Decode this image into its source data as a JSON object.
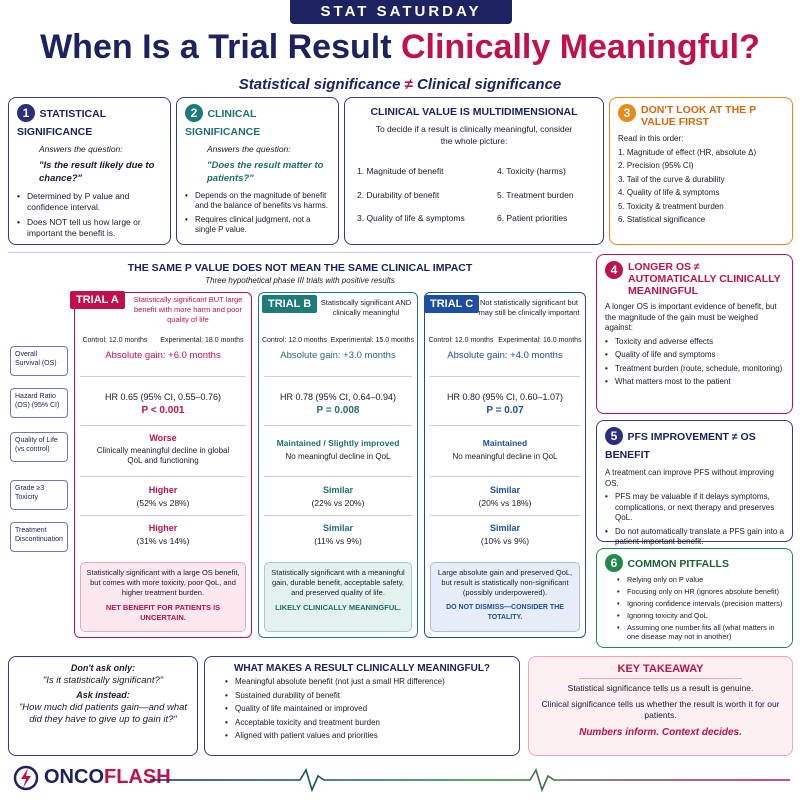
{
  "badge": "STAT SATURDAY",
  "title_a": "When Is a Trial Result ",
  "title_b": "Clinically Meaningful?",
  "sub_a": "Statistical significance ",
  "sub_neq": "≠",
  "sub_b": " Clinical significance",
  "box1": {
    "num": "1",
    "title": "STATISTICAL SIGNIFICANCE",
    "asks": "Answers the question:",
    "q": "\"Is the result likely due to chance?\"",
    "b1": "Determined by P value and confidence interval.",
    "b2": "Does NOT tell us how large or important the benefit is."
  },
  "box2": {
    "num": "2",
    "title": "CLINICAL SIGNIFICANCE",
    "asks": "Answers the question:",
    "q": "\"Does the result matter to patients?\"",
    "b1": "Depends on the magnitude of benefit and the balance of benefits vs harms.",
    "b2": "Requires clinical judgment, not a single P value."
  },
  "multi": {
    "title": "CLINICAL VALUE IS MULTIDIMENSIONAL",
    "intro": "To decide if a result is clinically meaningful, consider the whole picture:",
    "i1": "1.  Magnitude of benefit",
    "i2": "2.  Durability of benefit",
    "i3": "3.  Quality of life & symptoms",
    "i4": "4.  Toxicity (harms)",
    "i5": "5.  Treatment burden",
    "i6": "6.  Patient priorities"
  },
  "box3": {
    "num": "3",
    "title": "DON'T LOOK AT THE P VALUE FIRST",
    "intro": "Read in this order:",
    "i1": "1.  Magnitude of effect (HR, absolute Δ)",
    "i2": "2.  Precision (95% CI)",
    "i3": "3.  Tail of the curve & durability",
    "i4": "4.  Quality of life & symptoms",
    "i5": "5.  Toxicity & treatment burden",
    "i6": "6.  Statistical significance"
  },
  "trials": {
    "heading": "THE SAME P VALUE DOES NOT MEAN THE SAME CLINICAL IMPACT",
    "sub": "Three hypothetical phase III trials with positive results"
  },
  "rows": {
    "os": "Overall Survival (OS)",
    "hr": "Hazard Ratio (OS) (95% CI)",
    "qol": "Quality of Life (vs control)",
    "tox": "Grade ≥3 Toxicity",
    "disc": "Treatment Discontinuation"
  },
  "trialA": {
    "tag": "TRIAL A",
    "desc": "Statistically significant BUT large benefit with more harm and poor quality of life",
    "ctrl": "Control: 12.0 months",
    "exp": "Experimental: 18.0 months",
    "gain": "Absolute gain: +6.0 months",
    "hr": "HR 0.65 (95% CI, 0.55–0.76)",
    "p": "P < 0.001",
    "qol1": "Worse",
    "qol2": "Clinically meaningful decline in global QoL and functioning",
    "tox1": "Higher",
    "tox2": "(52% vs 28%)",
    "disc1": "Higher",
    "disc2": "(31% vs 14%)",
    "sum": "Statistically significant with a large OS benefit, but comes with more toxicity, poor QoL, and higher treatment burden.",
    "verdict": "NET BENEFIT FOR PATIENTS IS UNCERTAIN."
  },
  "trialB": {
    "tag": "TRIAL B",
    "desc": "Statistically significant AND clinically meaningful",
    "ctrl": "Control: 12.0 months",
    "exp": "Experimental: 15.0 months",
    "gain": "Absolute gain: +3.0 months",
    "hr": "HR 0.78 (95% CI, 0.64–0.94)",
    "p": "P = 0.008",
    "qol1": "Maintained / Slightly improved",
    "qol2": "No meaningful decline in QoL",
    "tox1": "Similar",
    "tox2": "(22% vs 20%)",
    "disc1": "Similar",
    "disc2": "(11% vs 9%)",
    "sum": "Statistically significant with a meaningful gain, durable benefit, acceptable safety, and preserved quality of life.",
    "verdict": "LIKELY CLINICALLY MEANINGFUL."
  },
  "trialC": {
    "tag": "TRIAL C",
    "desc": "Not statistically significant but may still be clinically important",
    "ctrl": "Control: 12.0 months",
    "exp": "Experimental: 16.0 months",
    "gain": "Absolute gain: +4.0 months",
    "hr": "HR 0.80 (95% CI, 0.60–1.07)",
    "p": "P = 0.07",
    "qol1": "Maintained",
    "qol2": "No meaningful decline in QoL",
    "tox1": "Similar",
    "tox2": "(20% vs 18%)",
    "disc1": "Similar",
    "disc2": "(10% vs 9%)",
    "sum": "Large absolute gain and preserved QoL, but result is statistically non-significant (possibly underpowered).",
    "verdict": "DO NOT DISMISS—CONSIDER THE TOTALITY."
  },
  "box4": {
    "num": "4",
    "title": "LONGER OS ≠ AUTOMATICALLY CLINICALLY MEANINGFUL",
    "intro": "A longer OS is important evidence of benefit, but the magnitude of the gain must be weighed against:",
    "b1": "Toxicity and adverse effects",
    "b2": "Quality of life and symptoms",
    "b3": "Treatment burden (route, schedule, monitoring)",
    "b4": "What matters most to the patient"
  },
  "box5": {
    "num": "5",
    "title": "PFS IMPROVEMENT ≠ OS BENEFIT",
    "intro": "A treatment can improve PFS without improving OS.",
    "b1": "PFS may be valuable if it delays symptoms, complications, or next therapy and preserves QoL.",
    "b2": "Do not automatically translate a PFS gain into a patient-important benefit."
  },
  "box6": {
    "num": "6",
    "title": "COMMON PITFALLS",
    "b1": "Relying only on P value",
    "b2": "Focusing only on HR (ignores absolute benefit)",
    "b3": "Ignoring confidence intervals (precision matters)",
    "b4": "Ignoring toxicity and QoL",
    "b5": "Assuming one number fits all (what matters in one disease may not in another)"
  },
  "ask": {
    "l1": "Don't ask only:",
    "l2": "\"Is it statistically significant?\"",
    "l3": "Ask instead:",
    "l4": "\"How much did patients gain—and what did they have to give up to gain it?\""
  },
  "what": {
    "title": "WHAT MAKES A RESULT CLINICALLY MEANINGFUL?",
    "b1": "Meaningful absolute benefit (not just a small HR difference)",
    "b2": "Sustained durability of benefit",
    "b3": "Quality of life maintained or improved",
    "b4": "Acceptable toxicity and treatment burden",
    "b5": "Aligned with patient values and priorities"
  },
  "key": {
    "title": "KEY TAKEAWAY",
    "l1": "Statistical significance tells us a result is genuine.",
    "l2": "Clinical significance tells us whether the result is worth it for our patients.",
    "l3": "Numbers inform. Context decides."
  },
  "logo": {
    "a": "ONCO",
    "b": "FLASH"
  },
  "colors": {
    "navy": "#1d2260",
    "crimson": "#c0114a",
    "teal": "#1f7a7a",
    "blue": "#1d4ea0",
    "orange": "#e88a1a",
    "green": "#1f8a4a"
  }
}
